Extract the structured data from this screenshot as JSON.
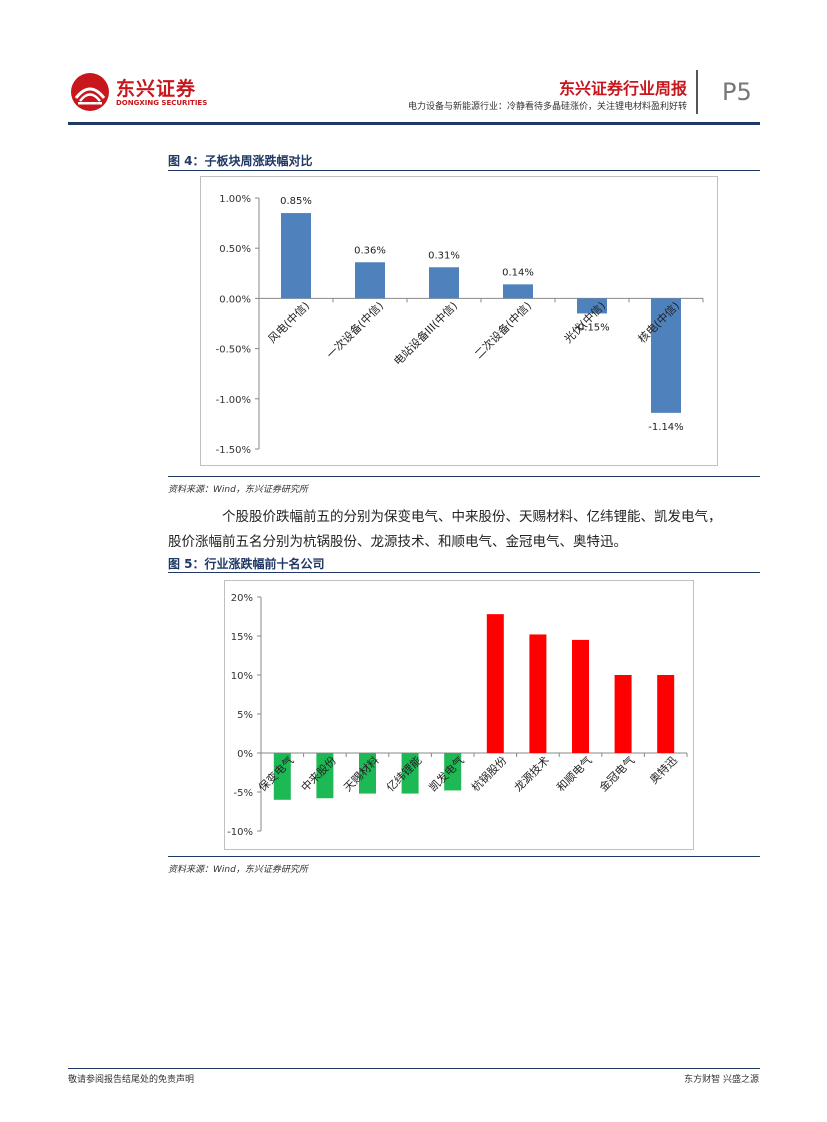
{
  "header": {
    "company_cn": "东兴证券",
    "company_en": "DONGXING SECURITIES",
    "report_type": "东兴证券行业周报",
    "subtitle": "电力设备与新能源行业：冷静看待多晶硅涨价，关注锂电材料盈利好转",
    "page": "P5"
  },
  "figure4": {
    "title": "图 4：子板块周涨跌幅对比",
    "source": "资料来源：Wind，东兴证券研究所"
  },
  "paragraph": {
    "line1": "个股股价跌幅前五的分别为保变电气、中来股份、天赐材料、亿纬锂能、凯发电气，",
    "line2": "股价涨幅前五名分别为杭锅股份、龙源技术、和顺电气、金冠电气、奥特迅。"
  },
  "figure5": {
    "title": "图 5：行业涨跌幅前十名公司",
    "source": "资料来源：Wind，东兴证券研究所"
  },
  "footer": {
    "left": "敬请参阅报告结尾处的免责声明",
    "right": "东方财智 兴盛之源"
  },
  "colors": {
    "brand_red": "#c8161d",
    "navy": "#1f3864",
    "bar_blue": "#4f81bd",
    "up_red": "#ff0000",
    "down_green": "#1db954"
  },
  "chart_data": [
    {
      "type": "bar",
      "title": "",
      "categories": [
        "风电(中信)",
        "一次设备(中信)",
        "电站设备III(中信)",
        "二次设备(中信)",
        "光伏(中信)",
        "核电(中信)"
      ],
      "values": [
        0.85,
        0.36,
        0.31,
        0.14,
        -0.15,
        -1.14
      ],
      "data_labels": [
        "0.85%",
        "0.36%",
        "0.31%",
        "0.14%",
        "-0.15%",
        "-1.14%"
      ],
      "unit": "%",
      "ylim": [
        -1.5,
        1.0
      ],
      "yticks": [
        1.0,
        0.5,
        0.0,
        -0.5,
        -1.0,
        -1.5
      ],
      "ytick_labels": [
        "1.00%",
        "0.50%",
        "0.00%",
        "-0.50%",
        "-1.00%",
        "-1.50%"
      ],
      "grid": false,
      "legend": "none",
      "bar_color": "#4f81bd"
    },
    {
      "type": "bar",
      "title": "",
      "categories": [
        "保变电气",
        "中来股份",
        "天赐材料",
        "亿纬锂能",
        "凯发电气",
        "杭锅股份",
        "龙源技术",
        "和顺电气",
        "金冠电气",
        "奥特迅"
      ],
      "values": [
        -6.0,
        -5.8,
        -5.2,
        -5.2,
        -4.8,
        17.8,
        15.2,
        14.5,
        10.0,
        10.0
      ],
      "unit": "%",
      "ylim": [
        -10,
        20
      ],
      "yticks": [
        20,
        15,
        10,
        5,
        0,
        -5,
        -10
      ],
      "ytick_labels": [
        "20%",
        "15%",
        "10%",
        "5%",
        "0%",
        "-5%",
        "-10%"
      ],
      "grid": false,
      "legend": "none",
      "positive_color": "#ff0000",
      "negative_color": "#1db954"
    }
  ]
}
